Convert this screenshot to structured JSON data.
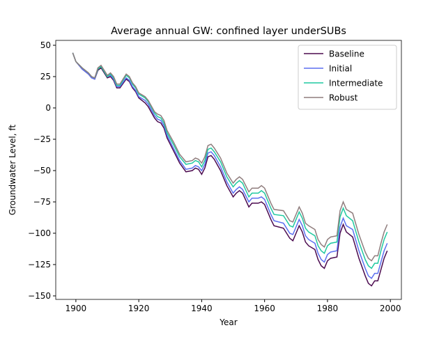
{
  "chart_data": {
    "type": "line",
    "title": "Average annual GW: confined layer underSUBs",
    "xlabel": "Year",
    "ylabel": "Groundwater Level, ft",
    "x": [
      1899,
      1900,
      1902,
      1904,
      1905,
      1906,
      1907,
      1908,
      1910,
      1911,
      1912,
      1913,
      1914,
      1916,
      1917,
      1918,
      1919,
      1920,
      1922,
      1923,
      1925,
      1926,
      1927,
      1928,
      1929,
      1931,
      1933,
      1935,
      1937,
      1938,
      1939,
      1940,
      1941,
      1942,
      1943,
      1944,
      1946,
      1948,
      1950,
      1951,
      1952,
      1953,
      1955,
      1956,
      1958,
      1959,
      1960,
      1962,
      1963,
      1966,
      1968,
      1969,
      1970,
      1971,
      1972,
      1973,
      1974,
      1976,
      1977,
      1978,
      1979,
      1980,
      1981,
      1983,
      1984,
      1985,
      1986,
      1988,
      1990,
      1992,
      1993,
      1994,
      1995,
      1996,
      1997,
      1998,
      1999
    ],
    "series": [
      {
        "name": "Baseline",
        "color": "#4b0a4f",
        "values": [
          44,
          37,
          31,
          27,
          24,
          23,
          30,
          32,
          24,
          25,
          22,
          16,
          16,
          23,
          21,
          16,
          13,
          8,
          4,
          1,
          -8,
          -11,
          -12,
          -16,
          -24,
          -34,
          -44,
          -51,
          -50,
          -48,
          -49,
          -53,
          -48,
          -39,
          -38,
          -41,
          -50,
          -62,
          -71,
          -68,
          -66,
          -68,
          -79,
          -76,
          -76,
          -75,
          -77,
          -89,
          -94,
          -96,
          -104,
          -106,
          -100,
          -94,
          -99,
          -107,
          -110,
          -113,
          -121,
          -126,
          -128,
          -122,
          -120,
          -119,
          -100,
          -93,
          -99,
          -103,
          -120,
          -134,
          -140,
          -142,
          -138,
          -138,
          -129,
          -120,
          -114
        ]
      },
      {
        "name": "Initial",
        "color": "#5b6ff0",
        "values": [
          44,
          37,
          31,
          27,
          24,
          23,
          31,
          33,
          25,
          26,
          23,
          17,
          17,
          24,
          22,
          17,
          14,
          9,
          6,
          3,
          -6,
          -9,
          -10,
          -14,
          -22,
          -32,
          -42,
          -49,
          -48,
          -46,
          -47,
          -50,
          -45,
          -36,
          -35,
          -38,
          -47,
          -59,
          -68,
          -65,
          -63,
          -65,
          -75,
          -72,
          -72,
          -71,
          -73,
          -85,
          -90,
          -92,
          -100,
          -101,
          -95,
          -89,
          -94,
          -102,
          -105,
          -108,
          -116,
          -121,
          -123,
          -117,
          -115,
          -114,
          -95,
          -88,
          -94,
          -97,
          -114,
          -128,
          -134,
          -136,
          -132,
          -132,
          -123,
          -114,
          -108
        ]
      },
      {
        "name": "Intermediate",
        "color": "#1fc9a0",
        "values": [
          44,
          37,
          32,
          28,
          25,
          24,
          31,
          33,
          25,
          27,
          24,
          18,
          18,
          26,
          24,
          19,
          16,
          11,
          8,
          5,
          -4,
          -7,
          -8,
          -12,
          -20,
          -29,
          -39,
          -45,
          -44,
          -42,
          -43,
          -47,
          -42,
          -33,
          -32,
          -35,
          -43,
          -55,
          -63,
          -60,
          -58,
          -60,
          -71,
          -68,
          -68,
          -66,
          -68,
          -80,
          -85,
          -86,
          -94,
          -95,
          -89,
          -83,
          -88,
          -96,
          -99,
          -102,
          -110,
          -114,
          -116,
          -110,
          -108,
          -107,
          -87,
          -80,
          -86,
          -90,
          -107,
          -121,
          -126,
          -128,
          -124,
          -124,
          -114,
          -105,
          -99
        ]
      },
      {
        "name": "Robust",
        "color": "#8f7d7d",
        "values": [
          44,
          37,
          32,
          28,
          25,
          24,
          32,
          34,
          26,
          28,
          25,
          19,
          19,
          27,
          25,
          20,
          17,
          12,
          9,
          6,
          -3,
          -5,
          -6,
          -10,
          -18,
          -27,
          -37,
          -43,
          -42,
          -40,
          -41,
          -44,
          -39,
          -30,
          -29,
          -32,
          -40,
          -52,
          -60,
          -57,
          -55,
          -57,
          -67,
          -64,
          -64,
          -62,
          -64,
          -76,
          -81,
          -82,
          -90,
          -91,
          -85,
          -79,
          -84,
          -92,
          -94,
          -97,
          -105,
          -109,
          -111,
          -105,
          -103,
          -102,
          -82,
          -75,
          -81,
          -84,
          -101,
          -115,
          -120,
          -122,
          -118,
          -118,
          -108,
          -99,
          -93
        ]
      }
    ],
    "xlim": [
      1893.6,
      2003.5
    ],
    "ylim": [
      -152.8,
      53.9
    ],
    "xticks": [
      1900,
      1920,
      1940,
      1960,
      1980,
      2000
    ],
    "yticks": [
      {
        "value": -150,
        "label": "−150"
      },
      {
        "value": -125,
        "label": "−125"
      },
      {
        "value": -100,
        "label": "−100"
      },
      {
        "value": -75,
        "label": "−75"
      },
      {
        "value": -50,
        "label": "−50"
      },
      {
        "value": -25,
        "label": "−25"
      },
      0,
      25,
      50
    ],
    "legend": "upper right",
    "grid": false
  }
}
